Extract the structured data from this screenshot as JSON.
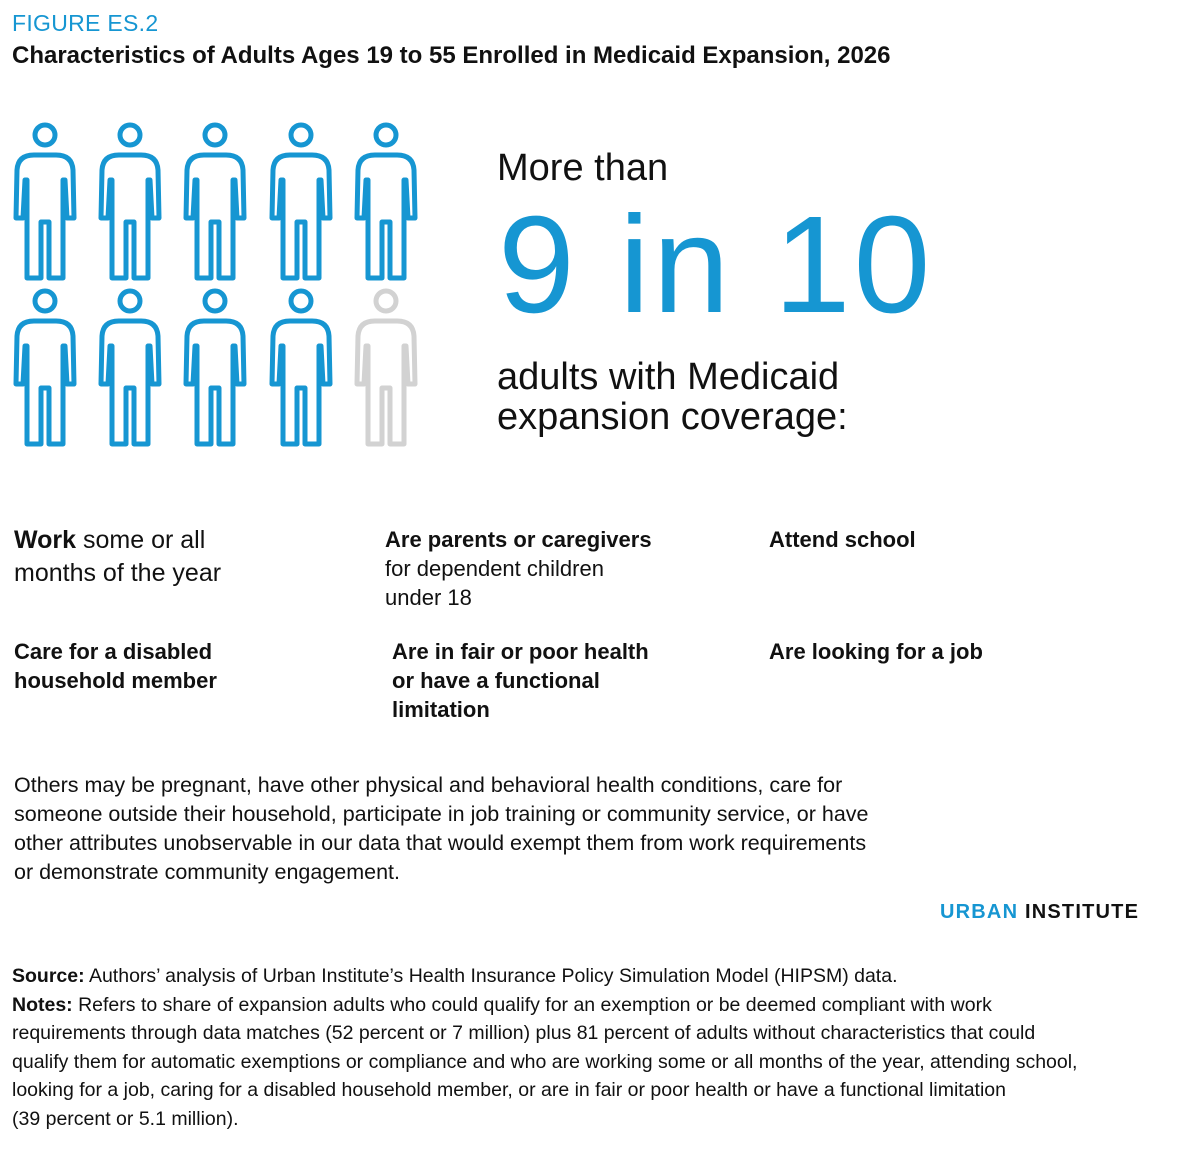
{
  "figure": {
    "label": "FIGURE ES.2",
    "title": "Characteristics of Adults Ages 19 to 55 Enrolled in Medicaid Expansion, 2026"
  },
  "pictogram": {
    "filled_count": 9,
    "total_count": 10,
    "filled_color": "#1696d2",
    "empty_color": "#d2d2d2",
    "icon": "person-icon"
  },
  "headline": {
    "prefix": "More than",
    "stat": "9 in 10",
    "suffix_line1": "adults with Medicaid",
    "suffix_line2": "expansion coverage:"
  },
  "characteristics": {
    "work_bold": "Work",
    "work_rest1": " some or all",
    "work_rest2": "months of the year",
    "parents_bold": "Are parents or caregivers",
    "parents_line2": "for dependent children",
    "parents_line3": "under 18",
    "school": "Attend school",
    "care_line1": "Care for a disabled",
    "care_line2": "household member",
    "health_line1": "Are in fair or poor health",
    "health_line2": "or have a functional",
    "health_line3": "limitation",
    "job": "Are looking for a job"
  },
  "others": {
    "line1": "Others may be pregnant, have other physical and behavioral health conditions, care for",
    "line2": "someone outside their household, participate in job training or community service, or have",
    "line3": "other attributes unobservable in our data that would exempt them from work requirements",
    "line4": "or demonstrate community engagement."
  },
  "brand": {
    "part1": "URBAN",
    "part2": "INSTITUTE"
  },
  "notes": {
    "source_label": "Source:",
    "source_text": " Authors’ analysis of Urban Institute’s Health Insurance Policy Simulation Model (HIPSM) data.",
    "notes_label": "Notes:",
    "notes_line1": " Refers to share of expansion adults who could qualify for an exemption or be deemed compliant with work",
    "notes_line2": "requirements through data matches (52 percent or 7 million) plus 81 percent of adults without characteristics that could",
    "notes_line3": "qualify them for automatic exemptions or compliance and who are working some or all months of the year, attending school,",
    "notes_line4": "looking for a job, caring for a disabled household member, or are in fair or poor health or have a functional limitation",
    "notes_line5": "(39 percent or 5.1 million)."
  }
}
